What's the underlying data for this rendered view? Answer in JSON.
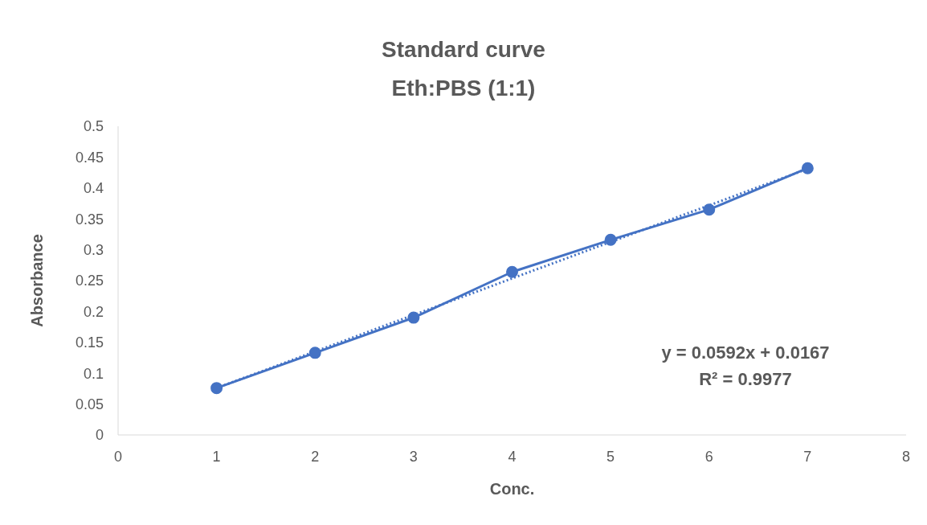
{
  "chart_data": {
    "type": "line",
    "title": "Standard curve",
    "subtitle": "Eth:PBS (1:1)",
    "xlabel": "Conc.",
    "ylabel": "Absorbance",
    "xlim": [
      0,
      8
    ],
    "xticks": [
      0,
      1,
      2,
      3,
      4,
      5,
      6,
      7,
      8
    ],
    "ylim": [
      0,
      0.5
    ],
    "yticks": [
      0,
      0.05,
      0.1,
      0.15,
      0.2,
      0.25,
      0.3,
      0.35,
      0.4,
      0.45,
      0.5
    ],
    "grid": false,
    "series": [
      {
        "color": "#4472c4",
        "x": [
          1,
          2,
          3,
          4,
          5,
          6,
          7
        ],
        "values": [
          0.076,
          0.133,
          0.19,
          0.264,
          0.316,
          0.365,
          0.432
        ],
        "marker": "circle",
        "line_style": "solid"
      },
      {
        "color": "#4472c4",
        "x": [
          1,
          7
        ],
        "values": [
          0.076,
          0.431
        ],
        "marker": "none",
        "line_style": "dotted"
      }
    ],
    "annotations": [
      "y = 0.0592x + 0.0167",
      "R² = 0.9977"
    ]
  }
}
